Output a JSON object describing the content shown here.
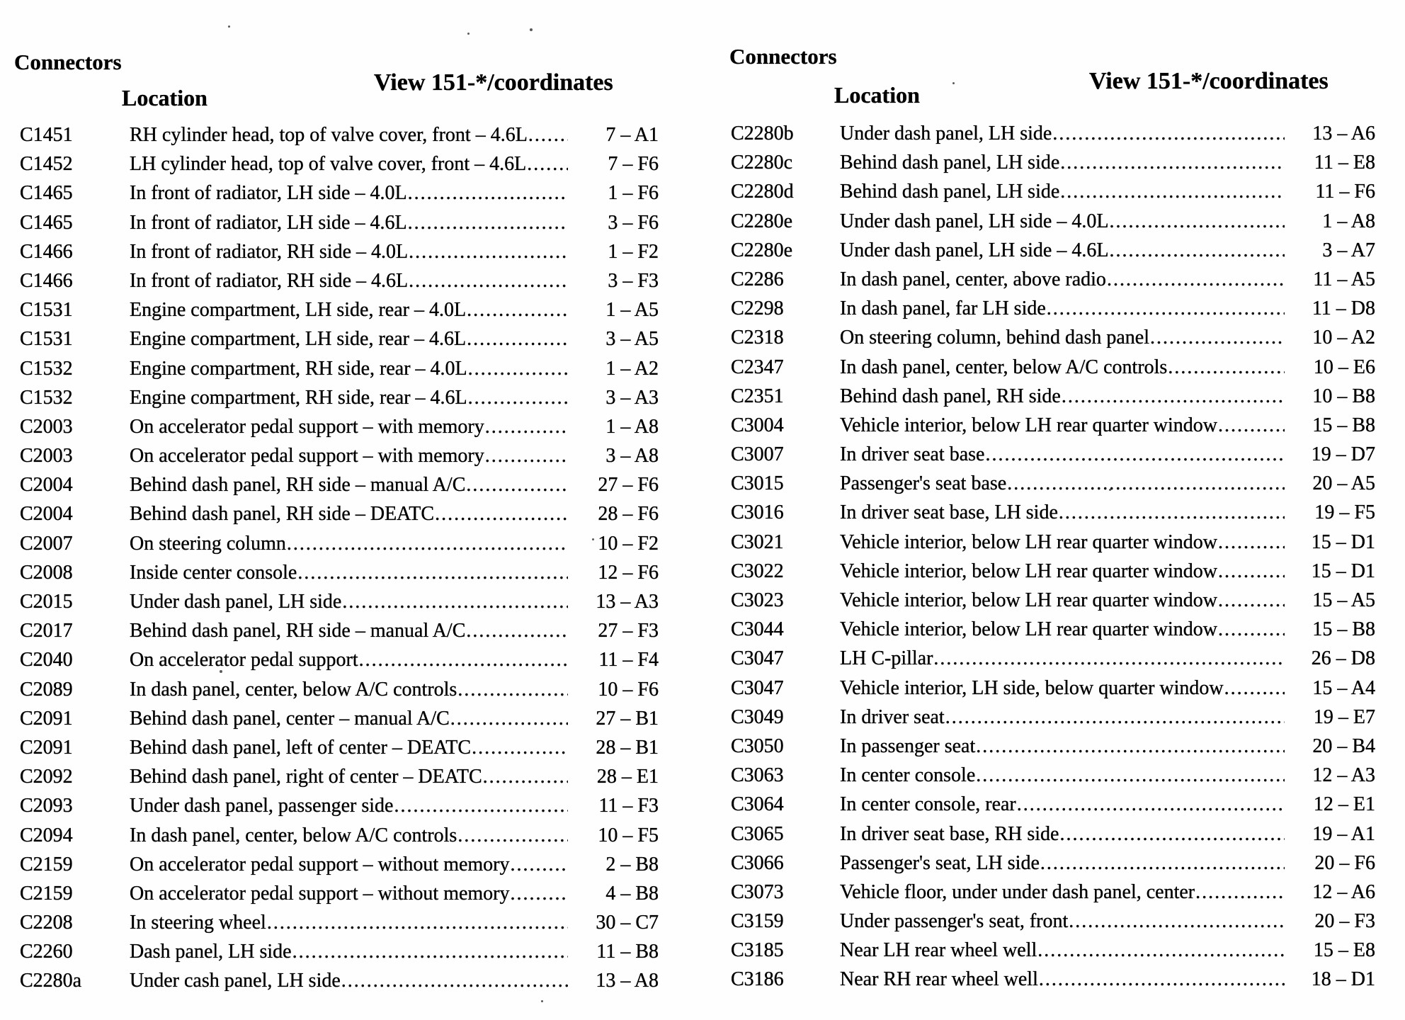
{
  "columns": {
    "left": {
      "title": "Connectors",
      "location_header": "Location",
      "view_header": "View 151-*/coordinates",
      "rows": [
        {
          "id": "C1451",
          "location": "RH cylinder head, top of valve cover, front – 4.6L",
          "coord": "7 – A1"
        },
        {
          "id": "C1452",
          "location": "LH cylinder head, top of valve cover, front – 4.6L",
          "coord": "7 – F6"
        },
        {
          "id": "C1465",
          "location": "In front of radiator, LH side – 4.0L",
          "coord": "1 – F6"
        },
        {
          "id": "C1465",
          "location": "In front of radiator, LH side – 4.6L",
          "coord": "3 – F6"
        },
        {
          "id": "C1466",
          "location": "In front of radiator, RH side – 4.0L",
          "coord": "1 – F2"
        },
        {
          "id": "C1466",
          "location": "In front of radiator, RH side – 4.6L",
          "coord": "3 – F3"
        },
        {
          "id": "C1531",
          "location": "Engine compartment, LH side, rear – 4.0L",
          "coord": "1 – A5"
        },
        {
          "id": "C1531",
          "location": "Engine compartment, LH side, rear – 4.6L",
          "coord": "3 – A5"
        },
        {
          "id": "C1532",
          "location": "Engine compartment, RH side, rear – 4.0L",
          "coord": "1 – A2"
        },
        {
          "id": "C1532",
          "location": "Engine compartment, RH side, rear – 4.6L",
          "coord": "3 – A3"
        },
        {
          "id": "C2003",
          "location": "On accelerator pedal support – with memory",
          "coord": "1 – A8"
        },
        {
          "id": "C2003",
          "location": "On accelerator pedal support – with memory",
          "coord": "3 – A8"
        },
        {
          "id": "C2004",
          "location": "Behind dash panel, RH side – manual A/C",
          "coord": "27 – F6"
        },
        {
          "id": "C2004",
          "location": "Behind dash panel, RH side – DEATC",
          "coord": "28 – F6"
        },
        {
          "id": "C2007",
          "location": "On steering column",
          "coord": "10 – F2"
        },
        {
          "id": "C2008",
          "location": "Inside center console",
          "coord": "12 – F6"
        },
        {
          "id": "C2015",
          "location": "Under dash panel, LH side",
          "coord": "13 – A3"
        },
        {
          "id": "C2017",
          "location": "Behind dash panel, RH side – manual A/C",
          "coord": "27 – F3"
        },
        {
          "id": "C2040",
          "location": "On accelerator pedal support",
          "coord": "11 – F4"
        },
        {
          "id": "C2089",
          "location": "In dash panel, center, below A/C controls",
          "coord": "10 – F6"
        },
        {
          "id": "C2091",
          "location": "Behind dash panel, center – manual A/C",
          "coord": "27 – B1"
        },
        {
          "id": "C2091",
          "location": "Behind dash panel, left of center – DEATC",
          "coord": "28 – B1"
        },
        {
          "id": "C2092",
          "location": "Behind dash panel, right of center – DEATC",
          "coord": "28 – E1"
        },
        {
          "id": "C2093",
          "location": "Under dash panel, passenger side",
          "coord": "11 – F3"
        },
        {
          "id": "C2094",
          "location": "In dash panel, center, below A/C controls",
          "coord": "10 – F5"
        },
        {
          "id": "C2159",
          "location": "On accelerator pedal support – without memory",
          "coord": "2 – B8"
        },
        {
          "id": "C2159",
          "location": "On accelerator pedal support – without memory",
          "coord": "4 – B8"
        },
        {
          "id": "C2208",
          "location": "In steering wheel",
          "coord": "30 – C7"
        },
        {
          "id": "C2260",
          "location": "Dash panel, LH side",
          "coord": "11 – B8"
        },
        {
          "id": "C2280a",
          "location": "Under cash panel, LH side",
          "coord": "13 – A8"
        }
      ]
    },
    "right": {
      "title": "Connectors",
      "location_header": "Location",
      "view_header": "View 151-*/coordinates",
      "rows": [
        {
          "id": "C2280b",
          "location": "Under dash panel, LH side",
          "coord": "13 – A6"
        },
        {
          "id": "C2280c",
          "location": "Behind dash panel, LH side",
          "coord": "11 – E8"
        },
        {
          "id": "C2280d",
          "location": "Behind dash panel, LH side",
          "coord": "11 – F6"
        },
        {
          "id": "C2280e",
          "location": "Under dash panel, LH side – 4.0L",
          "coord": "1 – A8"
        },
        {
          "id": "C2280e",
          "location": "Under dash panel, LH side – 4.6L",
          "coord": "3 – A7"
        },
        {
          "id": "C2286",
          "location": "In dash panel, center, above radio",
          "coord": "11 – A5"
        },
        {
          "id": "C2298",
          "location": "In dash panel, far LH side",
          "coord": "11 – D8"
        },
        {
          "id": "C2318",
          "location": "On steering column, behind dash panel",
          "coord": "10 – A2"
        },
        {
          "id": "C2347",
          "location": "In dash panel, center, below A/C controls",
          "coord": "10 – E6"
        },
        {
          "id": "C2351",
          "location": "Behind dash panel, RH side",
          "coord": "10 – B8"
        },
        {
          "id": "C3004",
          "location": "Vehicle interior, below LH rear quarter window",
          "coord": "15 – B8"
        },
        {
          "id": "C3007",
          "location": "In driver seat base",
          "coord": "19 – D7"
        },
        {
          "id": "C3015",
          "location": "Passenger's seat base",
          "coord": "20 – A5"
        },
        {
          "id": "C3016",
          "location": "In driver seat base, LH side",
          "coord": "19 – F5"
        },
        {
          "id": "C3021",
          "location": "Vehicle interior, below LH rear quarter window",
          "coord": "15 – D1"
        },
        {
          "id": "C3022",
          "location": "Vehicle interior, below LH rear quarter window",
          "coord": "15 – D1"
        },
        {
          "id": "C3023",
          "location": "Vehicle interior, below LH rear quarter window",
          "coord": "15 – A5"
        },
        {
          "id": "C3044",
          "location": "Vehicle interior, below LH rear quarter window",
          "coord": "15 – B8"
        },
        {
          "id": "C3047",
          "location": "LH C-pillar",
          "coord": "26 – D8"
        },
        {
          "id": "C3047",
          "location": "Vehicle interior, LH side, below quarter window",
          "coord": "15 – A4"
        },
        {
          "id": "C3049",
          "location": "In driver seat",
          "coord": "19 – E7"
        },
        {
          "id": "C3050",
          "location": "In passenger seat",
          "coord": "20 – B4"
        },
        {
          "id": "C3063",
          "location": "In center console",
          "coord": "12 – A3"
        },
        {
          "id": "C3064",
          "location": "In center console, rear",
          "coord": "12 – E1"
        },
        {
          "id": "C3065",
          "location": "In driver seat base, RH side",
          "coord": "19 – A1"
        },
        {
          "id": "C3066",
          "location": "Passenger's seat, LH side",
          "coord": "20 – F6"
        },
        {
          "id": "C3073",
          "location": "Vehicle floor, under under dash panel, center",
          "coord": "12 – A6"
        },
        {
          "id": "C3159",
          "location": "Under passenger's seat, front",
          "coord": "20 – F3"
        },
        {
          "id": "C3185",
          "location": "Near LH rear wheel well",
          "coord": "15 – E8"
        },
        {
          "id": "C3186",
          "location": "Near RH rear wheel well",
          "coord": "18 – D1"
        }
      ]
    }
  }
}
